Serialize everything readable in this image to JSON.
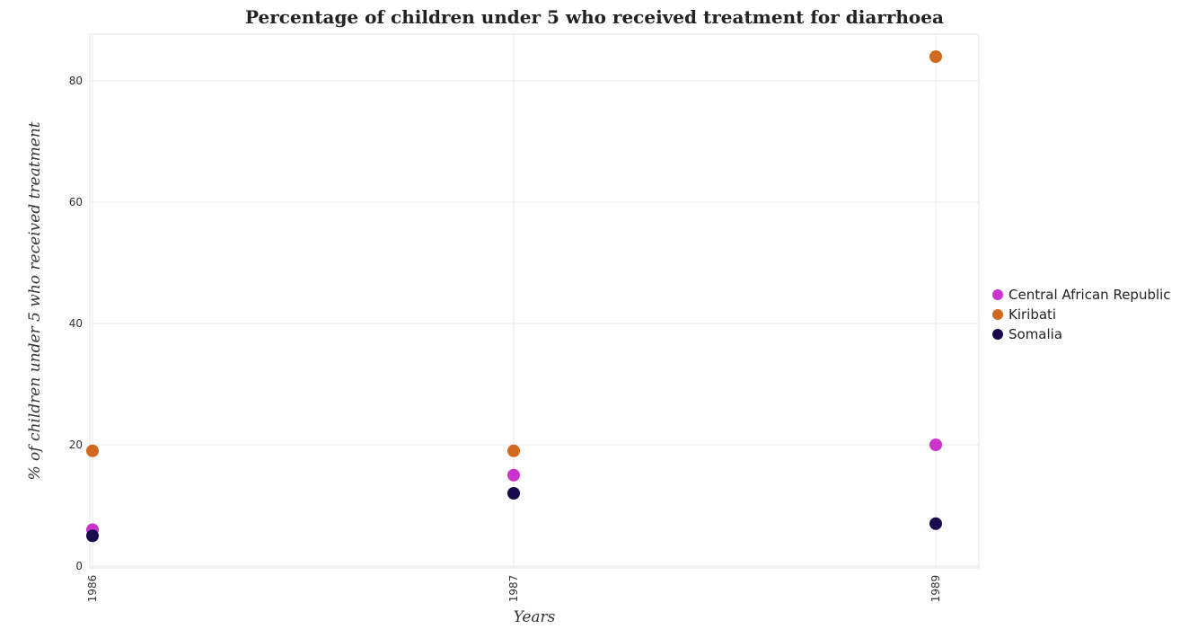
{
  "chart_data": {
    "type": "scatter",
    "title": "Percentage of children under 5 who received treatment for diarrhoea",
    "xlabel": "Years",
    "ylabel": "% of children under 5 who received treatment",
    "categories": [
      "1986",
      "1987",
      "1989"
    ],
    "ylim": [
      0,
      88
    ],
    "yticks": [
      0,
      20,
      40,
      60,
      80
    ],
    "grid": true,
    "legend_position": "right",
    "series": [
      {
        "name": "Central African Republic",
        "color": "#cc33cc",
        "values": [
          6,
          15,
          20
        ]
      },
      {
        "name": "Kiribati",
        "color": "#d2691e",
        "values": [
          19,
          19,
          84
        ]
      },
      {
        "name": "Somalia",
        "color": "#1a0a4d",
        "values": [
          5,
          12,
          7
        ]
      }
    ]
  }
}
